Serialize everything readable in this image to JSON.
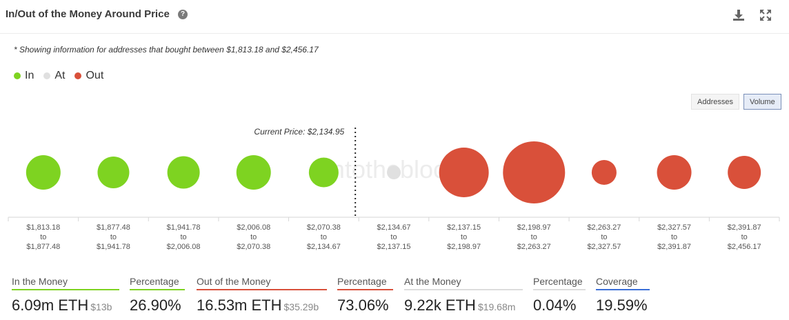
{
  "header": {
    "title": "In/Out of the Money Around Price",
    "help_glyph": "?",
    "icons": [
      "download-icon",
      "expand-icon"
    ]
  },
  "note": "* Showing information for addresses that bought between $1,813.18 and $2,456.17",
  "legend": [
    {
      "label": "In",
      "color": "#7ed321"
    },
    {
      "label": "At",
      "color": "#e0e0e0"
    },
    {
      "label": "Out",
      "color": "#d9503a"
    }
  ],
  "toggles": [
    {
      "label": "Addresses",
      "active": false
    },
    {
      "label": "Volume",
      "active": true
    }
  ],
  "chart_data": {
    "type": "scatter",
    "current_price_label": "Current Price: $2,134.95",
    "categories": [
      {
        "from": "$1,813.18",
        "to": "$1,877.48",
        "status": "in",
        "size": 50
      },
      {
        "from": "$1,877.48",
        "to": "$1,941.78",
        "status": "in",
        "size": 46
      },
      {
        "from": "$1,941.78",
        "to": "$2,006.08",
        "status": "in",
        "size": 47
      },
      {
        "from": "$2,006.08",
        "to": "$2,070.38",
        "status": "in",
        "size": 50
      },
      {
        "from": "$2,070.38",
        "to": "$2,134.67",
        "status": "in",
        "size": 43
      },
      {
        "from": "$2,134.67",
        "to": "$2,137.15",
        "status": "at",
        "size": 20
      },
      {
        "from": "$2,137.15",
        "to": "$2,198.97",
        "status": "out",
        "size": 72
      },
      {
        "from": "$2,198.97",
        "to": "$2,263.27",
        "status": "out",
        "size": 90
      },
      {
        "from": "$2,263.27",
        "to": "$2,327.57",
        "status": "out",
        "size": 36
      },
      {
        "from": "$2,327.57",
        "to": "$2,391.87",
        "status": "out",
        "size": 50
      },
      {
        "from": "$2,391.87",
        "to": "$2,456.17",
        "status": "out",
        "size": 48
      }
    ],
    "range_word": "to",
    "watermark": "intotheblock",
    "colors": {
      "in": "#7ed321",
      "at": "#e0e0e0",
      "out": "#d9503a"
    }
  },
  "stats": [
    {
      "label": "In the Money",
      "value": "6.09m ETH",
      "sub": "$13b",
      "color": "#7ed321"
    },
    {
      "label": "Percentage",
      "value": "26.90%",
      "sub": "",
      "color": "#7ed321"
    },
    {
      "label": "Out of the Money",
      "value": "16.53m ETH",
      "sub": "$35.29b",
      "color": "#d9503a"
    },
    {
      "label": "Percentage",
      "value": "73.06%",
      "sub": "",
      "color": "#d9503a"
    },
    {
      "label": "At the Money",
      "value": "9.22k ETH",
      "sub": "$19.68m",
      "color": "#dcdcdc"
    },
    {
      "label": "Percentage",
      "value": "0.04%",
      "sub": "",
      "color": "#dcdcdc"
    },
    {
      "label": "Coverage",
      "value": "19.59%",
      "sub": "",
      "color": "#3a6fd8"
    }
  ]
}
